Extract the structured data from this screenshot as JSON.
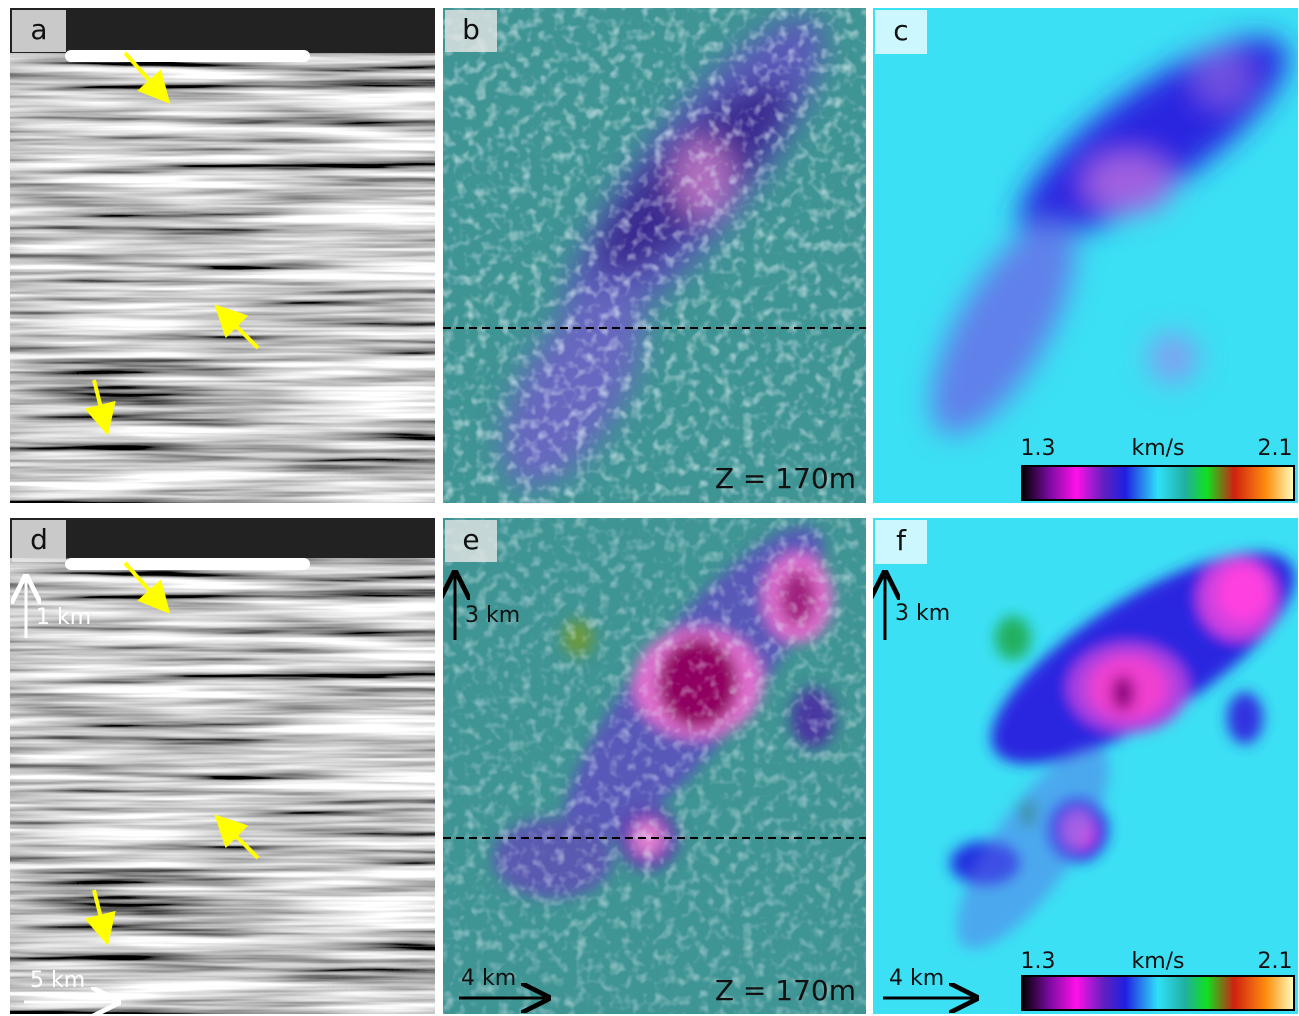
{
  "panels": [
    {
      "label": "a"
    },
    {
      "label": "b",
      "depth": "Z = 170m"
    },
    {
      "label": "c",
      "colorbar": {
        "min": "1.3",
        "unit": "km/s",
        "max": "2.1"
      }
    },
    {
      "label": "d",
      "vertical_scale": "1 km",
      "horizontal_scale": "5 km"
    },
    {
      "label": "e",
      "vertical_scale": "3 km",
      "horizontal_scale": "4 km",
      "depth": "Z = 170m"
    },
    {
      "label": "f",
      "vertical_scale": "3 km",
      "horizontal_scale": "4 km",
      "colorbar": {
        "min": "1.3",
        "unit": "km/s",
        "max": "2.1"
      }
    }
  ]
}
